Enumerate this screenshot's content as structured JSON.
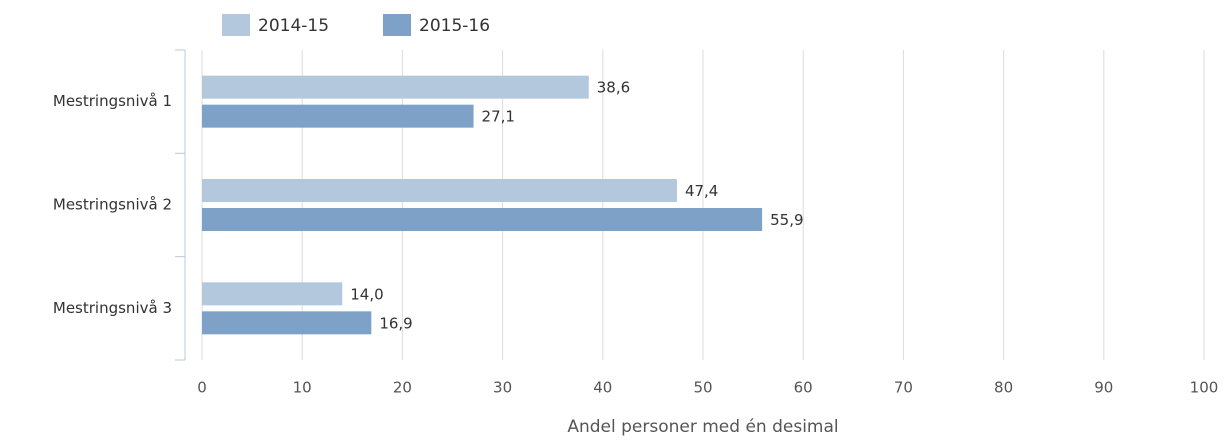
{
  "chart_data": {
    "type": "hbar",
    "categories": [
      "Mestringsnivå 1",
      "Mestringsnivå 2",
      "Mestringsnivå 3"
    ],
    "series": [
      {
        "name": "2014-15",
        "color": "#b3c8dd",
        "values": [
          38.6,
          47.4,
          14.0
        ],
        "value_labels": [
          "38,6",
          "47,4",
          "14,0"
        ]
      },
      {
        "name": "2015-16",
        "color": "#7ea2c7",
        "values": [
          27.1,
          55.9,
          16.9
        ],
        "value_labels": [
          "27,1",
          "55,9",
          "16,9"
        ]
      }
    ],
    "xlabel": "Andel personer med én desimal",
    "xlim": [
      0,
      100
    ],
    "xticks": [
      0,
      10,
      20,
      30,
      40,
      50,
      60,
      70,
      80,
      90,
      100
    ],
    "grid": true
  }
}
